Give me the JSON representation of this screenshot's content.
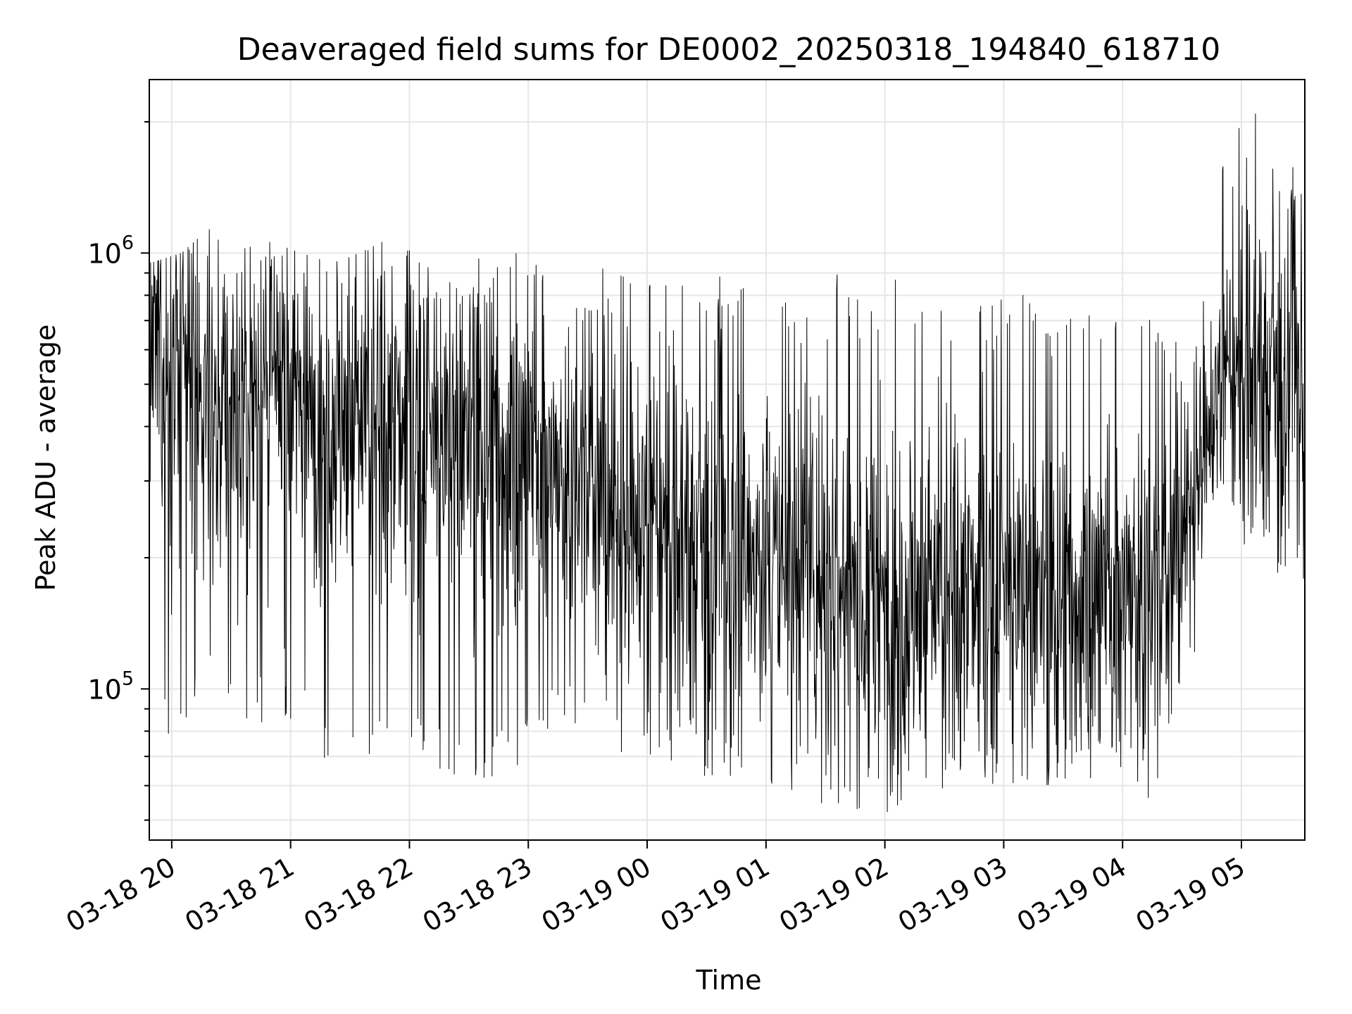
{
  "chart_data": {
    "type": "line",
    "title": "Deaveraged field sums for DE0002_20250318_194840_618710",
    "xlabel": "Time",
    "ylabel": "Peak ADU - average",
    "y_scale": "log",
    "ylim": [
      45000,
      2500000
    ],
    "xlim": [
      "2025-03-18 19:48:40",
      "2025-03-19 05:32:00"
    ],
    "grid": true,
    "line_color": "#000000",
    "x_tick_labels": [
      "03-18 20",
      "03-18 21",
      "03-18 22",
      "03-18 23",
      "03-19 00",
      "03-19 01",
      "03-19 02",
      "03-19 03",
      "03-19 04",
      "03-19 05"
    ],
    "x_ticks": [
      "2025-03-18 20:00",
      "2025-03-18 21:00",
      "2025-03-18 22:00",
      "2025-03-18 23:00",
      "2025-03-19 00:00",
      "2025-03-19 01:00",
      "2025-03-19 02:00",
      "2025-03-19 03:00",
      "2025-03-19 04:00",
      "2025-03-19 05:00"
    ],
    "y_ticks": [
      {
        "value": 100000,
        "base": "10",
        "exp": "5"
      },
      {
        "value": 1000000,
        "base": "10",
        "exp": "6"
      }
    ],
    "series": [
      {
        "x": [
          "2025-03-18 19:50",
          "2025-03-18 20:05",
          "2025-03-18 20:20",
          "2025-03-18 20:35",
          "2025-03-18 20:50",
          "2025-03-18 21:05",
          "2025-03-18 21:20",
          "2025-03-18 21:35",
          "2025-03-18 21:50",
          "2025-03-18 22:05",
          "2025-03-18 22:20",
          "2025-03-18 22:35",
          "2025-03-18 22:50",
          "2025-03-18 23:05",
          "2025-03-18 23:20",
          "2025-03-18 23:35",
          "2025-03-18 23:50",
          "2025-03-19 00:05",
          "2025-03-19 00:20",
          "2025-03-19 00:35",
          "2025-03-19 00:50",
          "2025-03-19 01:05",
          "2025-03-19 01:20",
          "2025-03-19 01:35",
          "2025-03-19 01:50",
          "2025-03-19 02:05",
          "2025-03-19 02:20",
          "2025-03-19 02:35",
          "2025-03-19 02:50",
          "2025-03-19 03:05",
          "2025-03-19 03:20",
          "2025-03-19 03:35",
          "2025-03-19 03:50",
          "2025-03-19 04:05",
          "2025-03-19 04:20",
          "2025-03-19 04:35",
          "2025-03-19 04:50",
          "2025-03-19 05:05",
          "2025-03-19 05:20",
          "2025-03-19 05:30"
        ],
        "y_median": [
          580000,
          550000,
          450000,
          460000,
          470000,
          480000,
          430000,
          420000,
          400000,
          370000,
          360000,
          380000,
          360000,
          350000,
          300000,
          280000,
          240000,
          230000,
          220000,
          210000,
          200000,
          190000,
          200000,
          180000,
          170000,
          160000,
          165000,
          170000,
          160000,
          170000,
          160000,
          170000,
          170000,
          175000,
          160000,
          280000,
          500000,
          550000,
          520000,
          500000
        ],
        "y_low": [
          70000,
          80000,
          95000,
          85000,
          80000,
          80000,
          65000,
          60000,
          70000,
          65000,
          60000,
          60000,
          65000,
          70000,
          85000,
          75000,
          70000,
          70000,
          65000,
          60000,
          60000,
          58000,
          55000,
          52000,
          50000,
          53000,
          49000,
          55000,
          57000,
          57000,
          60000,
          62000,
          62000,
          60000,
          52000,
          110000,
          300000,
          190000,
          180000,
          170000
        ],
        "y_high": [
          950000,
          1000000,
          1150000,
          1020000,
          1060000,
          1000000,
          950000,
          1000000,
          1080000,
          980000,
          900000,
          970000,
          1030000,
          980000,
          760000,
          960000,
          890000,
          830000,
          900000,
          930000,
          840000,
          760000,
          800000,
          900000,
          810000,
          930000,
          720000,
          760000,
          760000,
          840000,
          850000,
          760000,
          710000,
          770000,
          760000,
          530000,
          1550000,
          2300000,
          1700000,
          1600000
        ]
      }
    ]
  }
}
